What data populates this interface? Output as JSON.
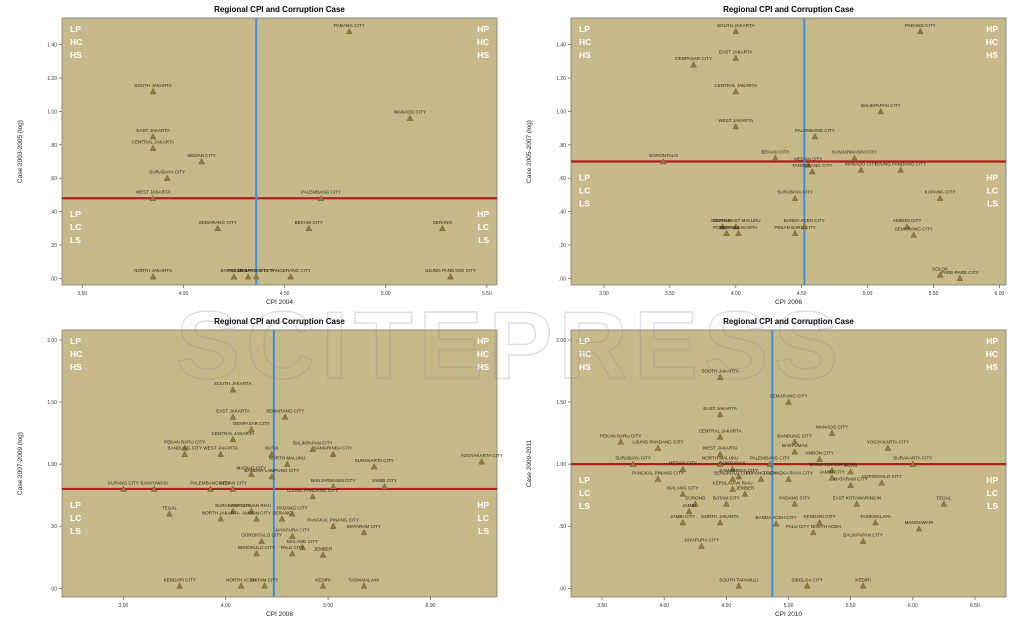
{
  "colors": {
    "plot_bg": "#c8b98a",
    "marker": "#8f7a43",
    "threshold_line": "#b2201e",
    "cpi_line": "#3f8fe0",
    "quadrant_text": "#ffffff",
    "watermark": "#8a8a8a"
  },
  "watermark_text": "SCITEPRESS",
  "chart_data": [
    {
      "type": "scatter",
      "title": "Regional CPI and Corruption Case",
      "xlabel": "CPI 2004",
      "ylabel": "Case 2003-2005 (log)",
      "xlim": [
        3.4,
        5.55
      ],
      "ylim": [
        -0.04,
        1.56
      ],
      "xticks": [
        3.5,
        4.0,
        4.5,
        5.0,
        5.5
      ],
      "xtick_labels": [
        "3.50",
        "4.00",
        "4.50",
        "5.00",
        "5.50"
      ],
      "yticks": [
        0.0,
        0.2,
        0.4,
        0.6,
        0.8,
        1.0,
        1.2,
        1.4
      ],
      "ytick_labels": [
        ".00",
        ".20",
        ".40",
        ".60",
        ".80",
        "1.00",
        "1.20",
        "1.40"
      ],
      "hline": 0.48,
      "vline": 4.36,
      "grid": false,
      "quadrants": {
        "top_left": [
          "LP",
          "HC",
          "HS"
        ],
        "top_right": [
          "HP",
          "HC",
          "HS"
        ],
        "bottom_left": [
          "LP",
          "LC",
          "LS"
        ],
        "bottom_right": [
          "HP",
          "LC",
          "LS"
        ]
      },
      "points": [
        {
          "x": 4.82,
          "y": 1.48,
          "label": "PADANG CITY"
        },
        {
          "x": 3.85,
          "y": 1.12,
          "label": "SOUTH JAKARTA"
        },
        {
          "x": 5.12,
          "y": 0.96,
          "label": "MANADO CITY"
        },
        {
          "x": 3.85,
          "y": 0.85,
          "label": "EAST JAKARTA"
        },
        {
          "x": 3.85,
          "y": 0.78,
          "label": "CENTRAL JAKARTA"
        },
        {
          "x": 4.09,
          "y": 0.7,
          "label": "MEDAN CITY"
        },
        {
          "x": 3.92,
          "y": 0.6,
          "label": "SURABAYA CITY"
        },
        {
          "x": 3.85,
          "y": 0.48,
          "label": "WEST JAKARTA"
        },
        {
          "x": 4.68,
          "y": 0.48,
          "label": "PALEMBANG CITY"
        },
        {
          "x": 4.17,
          "y": 0.3,
          "label": "SEMARANG CITY"
        },
        {
          "x": 4.62,
          "y": 0.3,
          "label": "BEKASI CITY"
        },
        {
          "x": 5.28,
          "y": 0.3,
          "label": "SERANG"
        },
        {
          "x": 3.85,
          "y": 0.01,
          "label": "NORTH JAKARTA"
        },
        {
          "x": 4.32,
          "y": 0.01,
          "label": "PEKAN BARU CITY"
        },
        {
          "x": 4.36,
          "y": 0.01,
          "label": "DENPASAR CITY"
        },
        {
          "x": 4.25,
          "y": 0.01,
          "label": "BATAM CITY"
        },
        {
          "x": 4.53,
          "y": 0.01,
          "label": "TANGERANG CITY"
        },
        {
          "x": 5.32,
          "y": 0.01,
          "label": "UJUNG PANDANG CITY"
        }
      ]
    },
    {
      "type": "scatter",
      "title": "Regional CPI and Corruption Case",
      "xlabel": "CPI 2006",
      "ylabel": "Case 2005-2007 (log)",
      "xlim": [
        2.75,
        6.05
      ],
      "ylim": [
        -0.04,
        1.56
      ],
      "xticks": [
        3.0,
        3.5,
        4.0,
        4.5,
        5.0,
        5.5,
        6.0
      ],
      "xtick_labels": [
        "3.00",
        "3.50",
        "4.00",
        "4.50",
        "5.00",
        "5.50",
        "6.00"
      ],
      "yticks": [
        0.0,
        0.2,
        0.4,
        0.6,
        0.8,
        1.0,
        1.2,
        1.4
      ],
      "ytick_labels": [
        ".00",
        ".20",
        ".40",
        ".60",
        ".80",
        "1.00",
        "1.20",
        "1.40"
      ],
      "hline": 0.7,
      "vline": 4.52,
      "grid": false,
      "quadrants": {
        "top_left": [
          "LP",
          "HC",
          "HS"
        ],
        "top_right": [
          "HP",
          "HC",
          "HS"
        ],
        "bottom_left": [
          "LP",
          "LC",
          "LS"
        ],
        "bottom_right": [
          "HP",
          "LC",
          "LS"
        ]
      },
      "points": [
        {
          "x": 4.0,
          "y": 1.48,
          "label": "SOUTH JAKARTA"
        },
        {
          "x": 5.4,
          "y": 1.48,
          "label": "PADANG CITY"
        },
        {
          "x": 4.0,
          "y": 1.32,
          "label": "EAST JAKARTA"
        },
        {
          "x": 3.68,
          "y": 1.28,
          "label": "DENPASAR CITY"
        },
        {
          "x": 4.0,
          "y": 1.12,
          "label": "CENTRAL JAKARTA"
        },
        {
          "x": 5.1,
          "y": 1.0,
          "label": "BALIKPAPAN CITY"
        },
        {
          "x": 4.0,
          "y": 0.91,
          "label": "WEST JAKARTA"
        },
        {
          "x": 4.6,
          "y": 0.85,
          "label": "PALEMBANG CITY"
        },
        {
          "x": 3.45,
          "y": 0.7,
          "label": "GORONTALO"
        },
        {
          "x": 4.3,
          "y": 0.72,
          "label": "BEKASI CITY"
        },
        {
          "x": 4.9,
          "y": 0.72,
          "label": "BANJARMASIN CITY"
        },
        {
          "x": 4.55,
          "y": 0.68,
          "label": "MEDAN CITY"
        },
        {
          "x": 4.58,
          "y": 0.64,
          "label": "TANGERANG CITY"
        },
        {
          "x": 4.95,
          "y": 0.65,
          "label": "MANADO CITY"
        },
        {
          "x": 5.25,
          "y": 0.65,
          "label": "UJUNG PANDANG CITY"
        },
        {
          "x": 4.45,
          "y": 0.48,
          "label": "SURABAYA CITY"
        },
        {
          "x": 5.55,
          "y": 0.48,
          "label": "KUPANG CITY"
        },
        {
          "x": 3.9,
          "y": 0.31,
          "label": "SERANG"
        },
        {
          "x": 4.0,
          "y": 0.31,
          "label": "SOUTH EAST MALUKU"
        },
        {
          "x": 4.52,
          "y": 0.31,
          "label": "BANDA ACEH CITY"
        },
        {
          "x": 5.3,
          "y": 0.31,
          "label": "AMBON CITY"
        },
        {
          "x": 3.93,
          "y": 0.27,
          "label": "PONTIANAK"
        },
        {
          "x": 4.02,
          "y": 0.27,
          "label": "NORTH JAKARTA"
        },
        {
          "x": 4.45,
          "y": 0.27,
          "label": "PEKAN BARU CITY"
        },
        {
          "x": 5.35,
          "y": 0.26,
          "label": "SEMARANG CITY"
        },
        {
          "x": 5.55,
          "y": 0.02,
          "label": "SOLOK"
        },
        {
          "x": 5.7,
          "y": 0.0,
          "label": "PARE-PARE CITY"
        }
      ]
    },
    {
      "type": "scatter",
      "title": "Regional CPI and Corruption Case",
      "xlabel": "CPI 2008",
      "ylabel": "Case 2007-2009 (log)",
      "xlim": [
        2.4,
        6.65
      ],
      "ylim": [
        -0.07,
        2.08
      ],
      "xticks": [
        3.0,
        4.0,
        5.0,
        6.0
      ],
      "xtick_labels": [
        "3.00",
        "4.00",
        "5.00",
        "6.00"
      ],
      "yticks": [
        0.0,
        0.5,
        1.0,
        1.5,
        2.0
      ],
      "ytick_labels": [
        ".00",
        ".50",
        "1.00",
        "1.50",
        "2.00"
      ],
      "hline": 0.8,
      "vline": 4.47,
      "grid": false,
      "quadrants": {
        "top_left": [
          "LP",
          "HC",
          "HS"
        ],
        "top_right": [
          "HP",
          "HC",
          "HS"
        ],
        "bottom_left": [
          "LP",
          "LC",
          "LS"
        ],
        "bottom_right": [
          "HP",
          "LC",
          "LS"
        ]
      },
      "points": [
        {
          "x": 4.07,
          "y": 1.6,
          "label": "SOUTH JAKARTA"
        },
        {
          "x": 4.07,
          "y": 1.38,
          "label": "EAST JAKARTA"
        },
        {
          "x": 4.58,
          "y": 1.38,
          "label": "SEMARANG CITY"
        },
        {
          "x": 4.25,
          "y": 1.28,
          "label": "DENPASAR CITY"
        },
        {
          "x": 4.07,
          "y": 1.2,
          "label": "CENTRAL JAKARTA"
        },
        {
          "x": 3.6,
          "y": 1.13,
          "label": "PEKAN BARU CITY"
        },
        {
          "x": 4.85,
          "y": 1.12,
          "label": "BALIKPAPAN CITY"
        },
        {
          "x": 3.6,
          "y": 1.08,
          "label": "BANDUNG CITY"
        },
        {
          "x": 3.95,
          "y": 1.08,
          "label": "WEST JAKARTA"
        },
        {
          "x": 4.45,
          "y": 1.08,
          "label": "KUTAI"
        },
        {
          "x": 5.05,
          "y": 1.08,
          "label": "SAMARINDA CITY"
        },
        {
          "x": 4.6,
          "y": 1.0,
          "label": "NORTH MALUKU"
        },
        {
          "x": 5.45,
          "y": 0.98,
          "label": "SURAKARTA CITY"
        },
        {
          "x": 6.5,
          "y": 1.02,
          "label": "YOGYAKARTA CITY"
        },
        {
          "x": 4.25,
          "y": 0.92,
          "label": "MADIAD CITY"
        },
        {
          "x": 4.45,
          "y": 0.9,
          "label": "BANDAR LAMPUNG CITY"
        },
        {
          "x": 3.0,
          "y": 0.8,
          "label": "KUPANG CITY"
        },
        {
          "x": 3.3,
          "y": 0.8,
          "label": "BANYUWASI"
        },
        {
          "x": 3.85,
          "y": 0.8,
          "label": "PALEMBANG CITY"
        },
        {
          "x": 4.07,
          "y": 0.8,
          "label": "MEDAN CITY"
        },
        {
          "x": 5.05,
          "y": 0.82,
          "label": "BANJARMASIN CITY"
        },
        {
          "x": 5.55,
          "y": 0.82,
          "label": "JAMBI CITY"
        },
        {
          "x": 4.85,
          "y": 0.74,
          "label": "UJUNG PANDANG CITY"
        },
        {
          "x": 3.45,
          "y": 0.6,
          "label": "TEGAL"
        },
        {
          "x": 4.07,
          "y": 0.62,
          "label": "SURABAYA CITY"
        },
        {
          "x": 4.25,
          "y": 0.62,
          "label": "KEPULAUAN RIAU"
        },
        {
          "x": 4.65,
          "y": 0.6,
          "label": "PADANG CITY"
        },
        {
          "x": 3.95,
          "y": 0.56,
          "label": "NORTH JAKARTA"
        },
        {
          "x": 4.3,
          "y": 0.56,
          "label": "AMBON CITY"
        },
        {
          "x": 4.55,
          "y": 0.56,
          "label": "SERANG"
        },
        {
          "x": 5.05,
          "y": 0.5,
          "label": "PANGKAL PINANG CITY"
        },
        {
          "x": 5.35,
          "y": 0.45,
          "label": "MATARAM CITY"
        },
        {
          "x": 4.65,
          "y": 0.42,
          "label": "JAYAPURA CITY"
        },
        {
          "x": 4.35,
          "y": 0.38,
          "label": "GORONTALO CITY"
        },
        {
          "x": 4.75,
          "y": 0.33,
          "label": "MALANG CITY"
        },
        {
          "x": 4.3,
          "y": 0.28,
          "label": "BENGKULU CITY"
        },
        {
          "x": 4.65,
          "y": 0.28,
          "label": "PALU CITY"
        },
        {
          "x": 4.95,
          "y": 0.27,
          "label": "JEMBER"
        },
        {
          "x": 3.55,
          "y": 0.02,
          "label": "KENDARI CITY"
        },
        {
          "x": 4.15,
          "y": 0.02,
          "label": "NORTH ACEH"
        },
        {
          "x": 4.38,
          "y": 0.02,
          "label": "BATAM CITY"
        },
        {
          "x": 4.95,
          "y": 0.02,
          "label": "KEDIRI"
        },
        {
          "x": 5.35,
          "y": 0.02,
          "label": "TASIKMALAYA"
        }
      ]
    },
    {
      "type": "scatter",
      "title": "Regional CPI and Corruption Case",
      "xlabel": "CPI 2010",
      "ylabel": "Case 2009-2011",
      "xlim": [
        3.25,
        6.75
      ],
      "ylim": [
        -0.07,
        2.08
      ],
      "xticks": [
        3.5,
        4.0,
        4.5,
        5.0,
        5.5,
        6.0,
        6.5
      ],
      "xtick_labels": [
        "3.50",
        "4.00",
        "4.50",
        "5.00",
        "5.50",
        "6.00",
        "6.50"
      ],
      "yticks": [
        0.0,
        0.5,
        1.0,
        1.5,
        2.0
      ],
      "ytick_labels": [
        ".00",
        ".50",
        "1.00",
        "1.50",
        "2.00"
      ],
      "hline": 1.0,
      "vline": 4.87,
      "grid": false,
      "quadrants": {
        "top_left": [
          "LP",
          "HC",
          "HS"
        ],
        "top_right": [
          "HP",
          "HC",
          "HS"
        ],
        "bottom_left": [
          "LP",
          "LC",
          "LS"
        ],
        "bottom_right": [
          "HP",
          "LC",
          "LS"
        ]
      },
      "points": [
        {
          "x": 4.45,
          "y": 1.7,
          "label": "SOUTH JAKARTA"
        },
        {
          "x": 5.0,
          "y": 1.5,
          "label": "SEMARANG CITY"
        },
        {
          "x": 4.45,
          "y": 1.4,
          "label": "EAST JAKARTA"
        },
        {
          "x": 5.35,
          "y": 1.25,
          "label": "MANADO CITY"
        },
        {
          "x": 3.65,
          "y": 1.18,
          "label": "PEKAN BARU CITY"
        },
        {
          "x": 4.45,
          "y": 1.22,
          "label": "CENTRAL JAKARTA"
        },
        {
          "x": 3.95,
          "y": 1.13,
          "label": "UJUNG PANDANG CITY"
        },
        {
          "x": 5.05,
          "y": 1.18,
          "label": "BANDUNG CITY"
        },
        {
          "x": 5.8,
          "y": 1.13,
          "label": "YOGYAKARTA CITY"
        },
        {
          "x": 4.45,
          "y": 1.08,
          "label": "WEST JAKARTA"
        },
        {
          "x": 5.05,
          "y": 1.1,
          "label": "BANYUMAS"
        },
        {
          "x": 5.25,
          "y": 1.04,
          "label": "AMBON CITY"
        },
        {
          "x": 3.75,
          "y": 1.0,
          "label": "SURABAYA CITY"
        },
        {
          "x": 4.45,
          "y": 1.0,
          "label": "NORTH MALUKU"
        },
        {
          "x": 4.85,
          "y": 1.0,
          "label": "PALEMBANG CITY"
        },
        {
          "x": 6.0,
          "y": 1.0,
          "label": "SURAKARTA CITY"
        },
        {
          "x": 4.15,
          "y": 0.96,
          "label": "MEDAN CITY"
        },
        {
          "x": 4.55,
          "y": 0.96,
          "label": "PONTIANAK"
        },
        {
          "x": 5.35,
          "y": 0.95,
          "label": "BANJARMASIN CITY"
        },
        {
          "x": 5.5,
          "y": 0.94,
          "label": "KUTAI"
        },
        {
          "x": 4.6,
          "y": 0.9,
          "label": "SAMARINDA CITY"
        },
        {
          "x": 5.35,
          "y": 0.89,
          "label": "JAMBI CITY"
        },
        {
          "x": 3.95,
          "y": 0.88,
          "label": "PANGKAL PINANG CITY"
        },
        {
          "x": 4.55,
          "y": 0.88,
          "label": "BENGKULU CITY"
        },
        {
          "x": 4.78,
          "y": 0.88,
          "label": "KUPANG CITY"
        },
        {
          "x": 5.0,
          "y": 0.88,
          "label": "PALANGKA RAYA CITY"
        },
        {
          "x": 5.5,
          "y": 0.83,
          "label": "MATARAM CITY"
        },
        {
          "x": 5.75,
          "y": 0.85,
          "label": "GORONTALO CITY"
        },
        {
          "x": 4.55,
          "y": 0.8,
          "label": "KEPULAUAN RIAU"
        },
        {
          "x": 4.15,
          "y": 0.76,
          "label": "MALANG CITY"
        },
        {
          "x": 4.65,
          "y": 0.76,
          "label": "JEMBER"
        },
        {
          "x": 4.25,
          "y": 0.68,
          "label": "SORONG"
        },
        {
          "x": 4.5,
          "y": 0.68,
          "label": "BATAM CITY"
        },
        {
          "x": 5.05,
          "y": 0.68,
          "label": "PADANG CITY"
        },
        {
          "x": 5.55,
          "y": 0.68,
          "label": "EAST KOTAWARINGIN"
        },
        {
          "x": 6.25,
          "y": 0.68,
          "label": "TEGAL"
        },
        {
          "x": 4.2,
          "y": 0.62,
          "label": "JAMBI"
        },
        {
          "x": 4.15,
          "y": 0.53,
          "label": "JAMBI CITY"
        },
        {
          "x": 4.45,
          "y": 0.53,
          "label": "NORTH JAKARTA"
        },
        {
          "x": 4.9,
          "y": 0.52,
          "label": "BANDA ACEH CITY"
        },
        {
          "x": 5.25,
          "y": 0.53,
          "label": "KENDARI CITY"
        },
        {
          "x": 5.7,
          "y": 0.53,
          "label": "TASIKMALAYA"
        },
        {
          "x": 6.05,
          "y": 0.48,
          "label": "MANOKWARI"
        },
        {
          "x": 5.2,
          "y": 0.45,
          "label": "PALU CITY NORTH ACEH"
        },
        {
          "x": 4.3,
          "y": 0.34,
          "label": "JAYAPURA CITY"
        },
        {
          "x": 5.6,
          "y": 0.38,
          "label": "BALIKPAPAN CITY"
        },
        {
          "x": 4.6,
          "y": 0.02,
          "label": "SOUTH TAPANULI"
        },
        {
          "x": 5.15,
          "y": 0.02,
          "label": "SIBOLGA CITY"
        },
        {
          "x": 5.6,
          "y": 0.02,
          "label": "KEDIRI"
        }
      ]
    }
  ]
}
